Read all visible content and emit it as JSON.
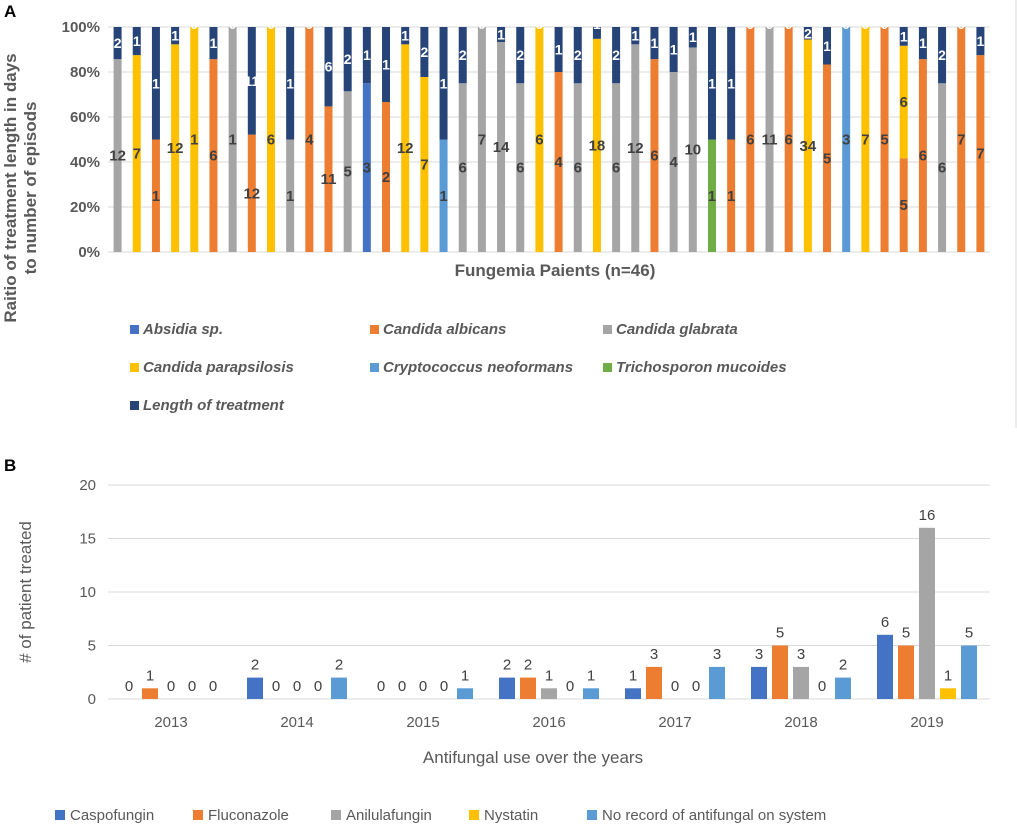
{
  "chart_data": [
    {
      "panel": "A",
      "type": "bar",
      "stacked": "percent",
      "title": "",
      "xlabel": "Fungemia Paients (n=46)",
      "ylabel_line1": "Raitio of treatment length in days",
      "ylabel_line2": "to number of episods",
      "yticks": [
        "0%",
        "20%",
        "40%",
        "60%",
        "80%",
        "100%"
      ],
      "ylim": [
        0,
        100
      ],
      "gridlines": true,
      "legend": [
        {
          "name": "Absidia sp.",
          "color": "#4472C4"
        },
        {
          "name": "Candida albicans",
          "color": "#ED7D31"
        },
        {
          "name": "Candida glabrata",
          "color": "#A5A5A5"
        },
        {
          "name": "Candida parapsilosis",
          "color": "#FFC000"
        },
        {
          "name": "Cryptococcus neoformans",
          "color": "#5B9BD5"
        },
        {
          "name": "Trichosporon mucoides",
          "color": "#70AD47"
        },
        {
          "name": "Length of treatment",
          "color": "#264478"
        }
      ],
      "patients": [
        {
          "species": "Candida glabrata",
          "episodes": 12,
          "length": 2
        },
        {
          "species": "Candida parapsilosis",
          "episodes": 7,
          "length": 1
        },
        {
          "species": "Candida albicans",
          "episodes": 1,
          "length": 1
        },
        {
          "species": "Candida parapsilosis",
          "episodes": 12,
          "length": 1
        },
        {
          "species": "Candida parapsilosis",
          "episodes": 1,
          "length": 0
        },
        {
          "species": "Candida albicans",
          "episodes": 6,
          "length": 1
        },
        {
          "species": "Candida glabrata",
          "episodes": 1,
          "length": 0
        },
        {
          "species": "Candida albicans",
          "episodes": 12,
          "length": 11
        },
        {
          "species": "Candida parapsilosis",
          "episodes": 6,
          "length": 0
        },
        {
          "species": "Candida glabrata",
          "episodes": 1,
          "length": 1
        },
        {
          "species": "Candida albicans",
          "episodes": 4,
          "length": 0
        },
        {
          "species": "Candida albicans",
          "episodes": 11,
          "length": 6
        },
        {
          "species": "Candida glabrata",
          "episodes": 5,
          "length": 2
        },
        {
          "species": "Absidia sp.",
          "episodes": 3,
          "length": 1
        },
        {
          "species": "Candida albicans",
          "episodes": 2,
          "length": 1
        },
        {
          "species": "Candida parapsilosis",
          "episodes": 12,
          "length": 1
        },
        {
          "species": "Candida parapsilosis",
          "episodes": 7,
          "length": 2
        },
        {
          "species": "Cryptococcus neoformans",
          "episodes": 1,
          "length": 1
        },
        {
          "species": "Candida glabrata",
          "episodes": 6,
          "length": 2
        },
        {
          "species": "Candida glabrata",
          "episodes": 7,
          "length": 0
        },
        {
          "species": "Candida glabrata",
          "episodes": 14,
          "length": 1
        },
        {
          "species": "Candida glabrata",
          "episodes": 6,
          "length": 2
        },
        {
          "species": "Candida parapsilosis",
          "episodes": 6,
          "length": 0
        },
        {
          "species": "Candida albicans",
          "episodes": 4,
          "length": 1
        },
        {
          "species": "Candida glabrata",
          "episodes": 6,
          "length": 2
        },
        {
          "species": "Candida parapsilosis",
          "episodes": 18,
          "length": 1
        },
        {
          "species": "Candida glabrata",
          "episodes": 6,
          "length": 2
        },
        {
          "species": "Candida glabrata",
          "episodes": 12,
          "length": 1
        },
        {
          "species": "Candida albicans",
          "episodes": 6,
          "length": 1
        },
        {
          "species": "Candida glabrata",
          "episodes": 4,
          "length": 1
        },
        {
          "species": "Candida glabrata",
          "episodes": 10,
          "length": 1
        },
        {
          "species": "Trichosporon mucoides",
          "episodes": 1,
          "length": 1
        },
        {
          "species": "Candida albicans",
          "episodes": 1,
          "length": 1
        },
        {
          "species": "Candida albicans",
          "episodes": 6,
          "length": 0
        },
        {
          "species": "Candida glabrata",
          "episodes": 11,
          "length": 0
        },
        {
          "species": "Candida albicans",
          "episodes": 6,
          "length": 0
        },
        {
          "species": "Candida parapsilosis",
          "episodes": 34,
          "length": 2
        },
        {
          "species": "Candida albicans",
          "episodes": 5,
          "length": 1
        },
        {
          "species": "Cryptococcus neoformans",
          "episodes": 3,
          "length": 0
        },
        {
          "species": "Candida parapsilosis",
          "episodes": 7,
          "length": 0
        },
        {
          "species": "Candida albicans",
          "episodes": 5,
          "length": 0
        },
        {
          "species": "Candida albicans + Candida parapsilosis",
          "segments": [
            {
              "species": "Candida albicans",
              "episodes": 5
            },
            {
              "species": "Candida parapsilosis",
              "episodes": 6
            }
          ],
          "length": 1
        },
        {
          "species": "Candida albicans",
          "episodes": 6,
          "length": 1
        },
        {
          "species": "Candida glabrata",
          "episodes": 6,
          "length": 2
        },
        {
          "species": "Candida albicans",
          "episodes": 7,
          "length": 0
        },
        {
          "species": "Candida albicans",
          "episodes": 7,
          "length": 1
        }
      ]
    },
    {
      "panel": "B",
      "type": "bar",
      "title": "",
      "xlabel": "Antifungal use over the years",
      "ylabel": "# of patient treated",
      "ylim": [
        0,
        20
      ],
      "yticks": [
        0,
        5,
        10,
        15,
        20
      ],
      "gridlines": true,
      "legend_position": "bottom",
      "categories": [
        "2013",
        "2014",
        "2015",
        "2016",
        "2017",
        "2018",
        "2019"
      ],
      "series": [
        {
          "name": "Caspofungin",
          "color": "#4472C4",
          "values": [
            0,
            2,
            0,
            2,
            1,
            3,
            6
          ]
        },
        {
          "name": "Fluconazole",
          "color": "#ED7D31",
          "values": [
            1,
            0,
            0,
            2,
            3,
            5,
            5
          ]
        },
        {
          "name": "Anilulafungin",
          "color": "#A5A5A5",
          "values": [
            0,
            0,
            0,
            1,
            0,
            3,
            16
          ]
        },
        {
          "name": "Nystatin",
          "color": "#FFC000",
          "values": [
            0,
            0,
            0,
            0,
            0,
            0,
            1
          ]
        },
        {
          "name": "No record  of antifungal  on system",
          "color": "#5B9BD5",
          "values": [
            0,
            2,
            1,
            1,
            3,
            2,
            5
          ]
        }
      ]
    }
  ],
  "panels": {
    "a_letter": "A",
    "b_letter": "B"
  }
}
